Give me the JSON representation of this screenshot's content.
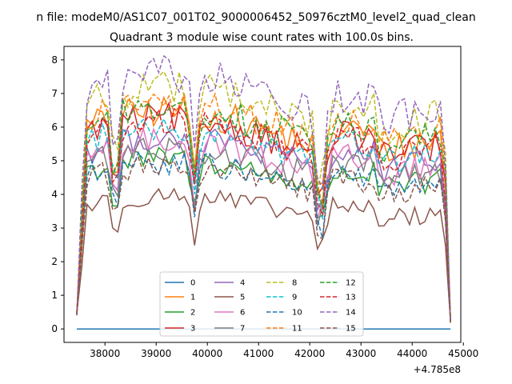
{
  "chart_data": {
    "type": "line",
    "suptitle": "n file: modeM0/AS1C07_001T02_9000006452_50976cztM0_level2_quad_clean",
    "title": "Quadrant 3 module wise count rates with 100.0s bins.",
    "xlabel": "",
    "ylabel": "",
    "x_offset_label": "+4.785e8",
    "xlim": [
      37200,
      44950
    ],
    "ylim": [
      -0.4,
      8.4
    ],
    "xticks": [
      38000,
      39000,
      40000,
      41000,
      42000,
      43000,
      44000,
      45000
    ],
    "yticks": [
      0,
      1,
      2,
      3,
      4,
      5,
      6,
      7,
      8
    ],
    "legend_placement": "lower center",
    "grid": false,
    "x_range": [
      37450,
      44750
    ],
    "series": [
      {
        "name": "0",
        "color": "#1f77b4",
        "dash": "solid",
        "base": 0.0
      },
      {
        "name": "1",
        "color": "#ff7f0e",
        "dash": "solid",
        "base": 5.9
      },
      {
        "name": "2",
        "color": "#2ca02c",
        "dash": "solid",
        "base": 4.6
      },
      {
        "name": "3",
        "color": "#d62728",
        "dash": "solid",
        "base": 5.7
      },
      {
        "name": "4",
        "color": "#9467bd",
        "dash": "solid",
        "base": 5.2
      },
      {
        "name": "5",
        "color": "#8c564b",
        "dash": "solid",
        "base": 3.6
      },
      {
        "name": "6",
        "color": "#e377c2",
        "dash": "solid",
        "base": 5.1
      },
      {
        "name": "7",
        "color": "#7f7f7f",
        "dash": "solid",
        "base": 4.9
      },
      {
        "name": "8",
        "color": "#bcbd22",
        "dash": "dashed",
        "base": 6.6
      },
      {
        "name": "9",
        "color": "#17becf",
        "dash": "dashed",
        "base": 5.5
      },
      {
        "name": "10",
        "color": "#1f77b4",
        "dash": "dashed",
        "base": 4.5
      },
      {
        "name": "11",
        "color": "#ff7f0e",
        "dash": "dashed",
        "base": 6.1
      },
      {
        "name": "12",
        "color": "#2ca02c",
        "dash": "dashed",
        "base": 6.0
      },
      {
        "name": "13",
        "color": "#d62728",
        "dash": "dashed",
        "base": 5.6
      },
      {
        "name": "14",
        "color": "#9467bd",
        "dash": "dashed",
        "base": 6.9
      },
      {
        "name": "15",
        "color": "#8c564b",
        "dash": "dashed",
        "base": 4.4
      }
    ]
  }
}
